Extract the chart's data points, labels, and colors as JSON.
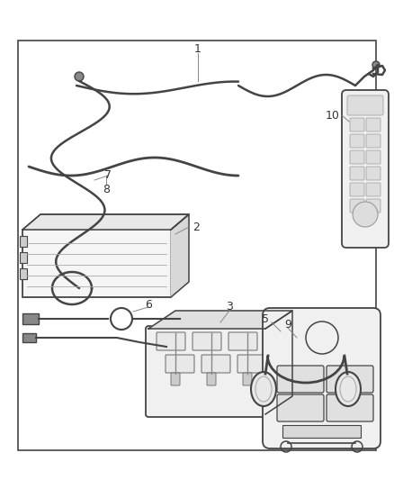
{
  "bg_color": "#ffffff",
  "border_color": "#444444",
  "line_color": "#444444",
  "label_color": "#333333",
  "fig_width": 4.38,
  "fig_height": 5.33,
  "dpi": 100
}
